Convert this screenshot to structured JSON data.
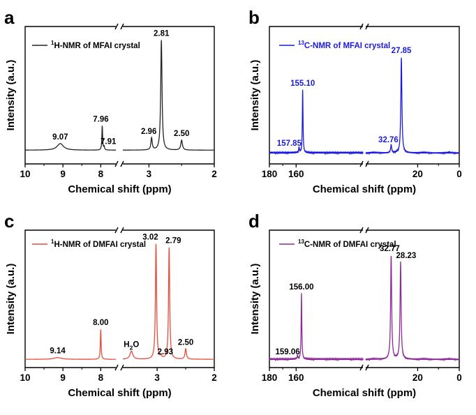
{
  "chart_data": [
    {
      "panel": "a",
      "type": "line",
      "nucleus": "H",
      "legend": {
        "sup": "1",
        "text": "H-NMR of MFAI crystal"
      },
      "color": "#222222",
      "xlabel": "Chemical shift (ppm)",
      "ylabel": "Intensity (a.u.)",
      "xlim": [
        10,
        2
      ],
      "axis_break": [
        7.6,
        3.4
      ],
      "xticks": [
        10,
        9,
        8,
        3,
        2
      ],
      "peaks": [
        {
          "x": 9.07,
          "h": 0.06,
          "w": 0.1,
          "label": "9.07"
        },
        {
          "x": 7.96,
          "h": 0.22,
          "w": 0.012,
          "label": "7.96"
        },
        {
          "x": 7.91,
          "h": 0.03,
          "w": 0.012,
          "label": "7.91"
        },
        {
          "x": 2.96,
          "h": 0.11,
          "w": 0.012,
          "label": "2.96"
        },
        {
          "x": 2.81,
          "h": 1.0,
          "w": 0.012,
          "label": "2.81"
        },
        {
          "x": 2.5,
          "h": 0.09,
          "w": 0.015,
          "label": "2.50"
        }
      ]
    },
    {
      "panel": "b",
      "type": "line",
      "nucleus": "C",
      "legend": {
        "sup": "13",
        "text": "C-NMR of MFAI crystal"
      },
      "color": "#1a1adc",
      "xlabel": "Chemical shift (ppm)",
      "ylabel": "Intensity (a.u.)",
      "xlim": [
        180,
        0
      ],
      "axis_break": [
        110,
        45
      ],
      "xticks": [
        180,
        160,
        20,
        0
      ],
      "peaks": [
        {
          "x": 157.85,
          "h": 0.05,
          "w": 0.3,
          "label": "157.85"
        },
        {
          "x": 155.1,
          "h": 0.56,
          "w": 0.3,
          "label": "155.10"
        },
        {
          "x": 32.76,
          "h": 0.07,
          "w": 0.3,
          "label": "32.76"
        },
        {
          "x": 27.85,
          "h": 0.85,
          "w": 0.3,
          "label": "27.85"
        }
      ]
    },
    {
      "panel": "c",
      "type": "line",
      "nucleus": "H",
      "legend": {
        "sup": "1",
        "text": "H-NMR of DMFAI crystal"
      },
      "color": "#e84b3c",
      "xlabel": "Chemical shift (ppm)",
      "ylabel": "Intensity (a.u.)",
      "xlim": [
        10,
        2
      ],
      "axis_break": [
        7.6,
        3.6
      ],
      "xticks": [
        10,
        9,
        8,
        3,
        2
      ],
      "peaks": [
        {
          "x": 9.14,
          "h": 0.015,
          "w": 0.12,
          "label": "9.14"
        },
        {
          "x": 8.0,
          "h": 0.26,
          "w": 0.012,
          "label": "8.00"
        },
        {
          "x": 3.45,
          "h": 0.07,
          "w": 0.03,
          "label": "H2O",
          "label_main": "H",
          "label_sub": "2",
          "label_end": "O"
        },
        {
          "x": 3.02,
          "h": 1.0,
          "w": 0.012,
          "label": "3.02"
        },
        {
          "x": 2.93,
          "h": 0.02,
          "w": 0.012,
          "label": "2.93"
        },
        {
          "x": 2.79,
          "h": 0.97,
          "w": 0.012,
          "label": "2.79"
        },
        {
          "x": 2.5,
          "h": 0.09,
          "w": 0.015,
          "label": "2.50"
        }
      ]
    },
    {
      "panel": "d",
      "type": "line",
      "nucleus": "C",
      "legend": {
        "sup": "13",
        "text": "C-NMR of DMFAI crystal"
      },
      "color": "#8e2a98",
      "xlabel": "Chemical shift (ppm)",
      "ylabel": "Intensity (a.u.)",
      "xlim": [
        180,
        0
      ],
      "axis_break": [
        110,
        45
      ],
      "xticks": [
        180,
        160,
        20,
        0
      ],
      "peaks": [
        {
          "x": 159.06,
          "h": 0.03,
          "w": 0.3,
          "label": "159.06"
        },
        {
          "x": 156.0,
          "h": 0.57,
          "w": 0.3,
          "label": "156.00"
        },
        {
          "x": 32.77,
          "h": 0.9,
          "w": 0.3,
          "label": "32.77"
        },
        {
          "x": 28.23,
          "h": 0.84,
          "w": 0.3,
          "label": "28.23"
        }
      ]
    }
  ]
}
